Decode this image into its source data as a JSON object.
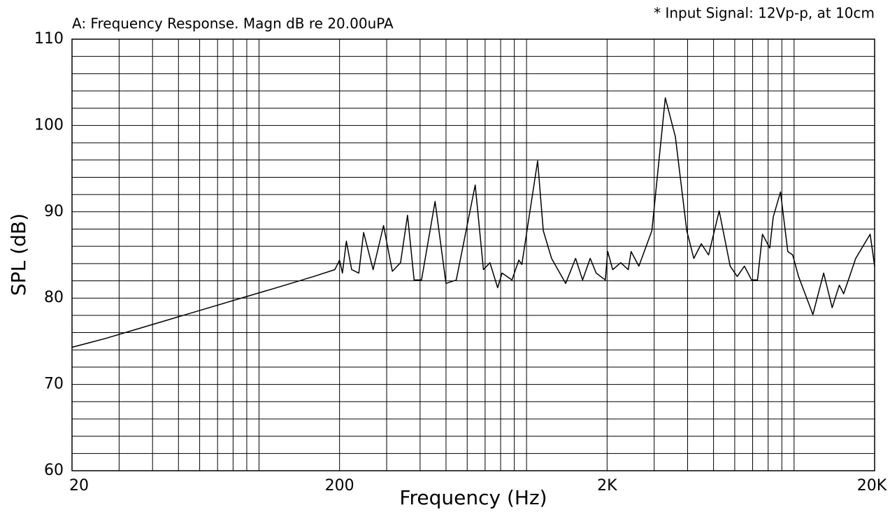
{
  "chart_data": {
    "type": "line",
    "title": "A: Frequency Response. Magn dB re 20.00uPA",
    "annotation": "* Input Signal: 12Vp-p, at 10cm",
    "xlabel": "Frequency (Hz)",
    "ylabel": "SPL (dB)",
    "xscale": "log",
    "grid": true,
    "xlim": [
      20,
      20000
    ],
    "ylim": [
      60,
      110
    ],
    "xticks": [
      20,
      200,
      {
        "value": 2000,
        "label": "2K"
      },
      {
        "value": 20000,
        "label": "20K"
      }
    ],
    "yticks": [
      60,
      70,
      80,
      90,
      100,
      110
    ],
    "x_minor_grid": [
      30,
      40,
      50,
      60,
      70,
      80,
      90,
      100,
      300,
      400,
      500,
      600,
      700,
      800,
      900,
      1000,
      3000,
      4000,
      5000,
      6000,
      7000,
      8000,
      9000,
      10000
    ],
    "y_minor_grid": [
      62,
      64,
      66,
      68,
      72,
      74,
      76,
      78,
      82,
      84,
      86,
      88,
      92,
      94,
      96,
      98,
      102,
      104,
      106,
      108
    ],
    "x": [
      20,
      26.5,
      35.8,
      48.3,
      65.2,
      88,
      119,
      160,
      192,
      200,
      205,
      212,
      222,
      236,
      246,
      267,
      292,
      315,
      338,
      359,
      380,
      405,
      455,
      500,
      546,
      643,
      690,
      730,
      780,
      810,
      882,
      936,
      960,
      1100,
      1155,
      1240,
      1400,
      1525,
      1620,
      1730,
      1820,
      1970,
      2010,
      2100,
      2250,
      2400,
      2460,
      2630,
      2940,
      3300,
      3600,
      3970,
      4220,
      4500,
      4790,
      5250,
      5770,
      6130,
      6520,
      6940,
      7300,
      7620,
      8110,
      8360,
      8900,
      9470,
      9880,
      10390,
      11760,
      12900,
      13880,
      14760,
      15320,
      17000,
      19240,
      20000
    ],
    "series": [
      {
        "color": "#000000",
        "values": [
          74.3,
          75.3,
          76.5,
          77.7,
          78.9,
          80.1,
          81.3,
          82.5,
          83.3,
          84.4,
          82.9,
          86.6,
          83.3,
          82.9,
          87.6,
          83.3,
          88.4,
          83.1,
          84.1,
          89.6,
          82.1,
          82.1,
          91.2,
          81.7,
          82.1,
          93.1,
          83.3,
          84.1,
          81.2,
          82.9,
          82.1,
          84.4,
          83.9,
          95.9,
          87.8,
          84.6,
          81.7,
          84.6,
          82.1,
          84.6,
          82.9,
          82.1,
          85.4,
          83.3,
          84.1,
          83.3,
          85.4,
          83.7,
          87.8,
          103.2,
          98.7,
          87.8,
          84.6,
          86.3,
          85.0,
          90.1,
          83.7,
          82.5,
          83.7,
          82.1,
          82.1,
          87.4,
          85.8,
          89.4,
          92.3,
          85.4,
          85.0,
          82.5,
          78.1,
          82.9,
          78.9,
          81.5,
          80.5,
          84.6,
          87.4,
          83.7
        ]
      }
    ]
  }
}
